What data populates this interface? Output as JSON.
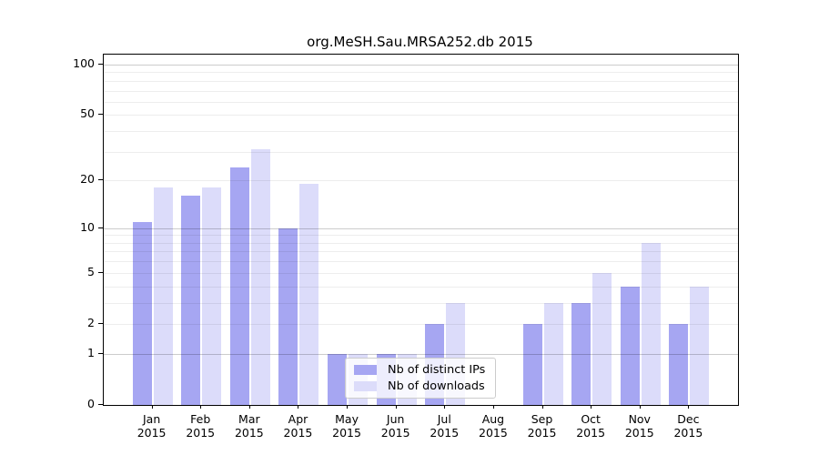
{
  "chart_data": {
    "type": "bar",
    "title": "org.MeSH.Sau.MRSA252.db 2015",
    "categories": [
      {
        "month": "Jan",
        "year": "2015"
      },
      {
        "month": "Feb",
        "year": "2015"
      },
      {
        "month": "Mar",
        "year": "2015"
      },
      {
        "month": "Apr",
        "year": "2015"
      },
      {
        "month": "May",
        "year": "2015"
      },
      {
        "month": "Jun",
        "year": "2015"
      },
      {
        "month": "Jul",
        "year": "2015"
      },
      {
        "month": "Aug",
        "year": "2015"
      },
      {
        "month": "Sep",
        "year": "2015"
      },
      {
        "month": "Oct",
        "year": "2015"
      },
      {
        "month": "Nov",
        "year": "2015"
      },
      {
        "month": "Dec",
        "year": "2015"
      }
    ],
    "series": [
      {
        "name": "Nb of distinct IPs",
        "color": "#a6a6f2",
        "values": [
          11,
          16,
          24,
          10,
          1,
          1,
          2,
          0,
          2,
          3,
          4,
          2
        ]
      },
      {
        "name": "Nb of downloads",
        "color": "#dcdcfa",
        "values": [
          18,
          18,
          31,
          19,
          1,
          1,
          3,
          0,
          3,
          5,
          8,
          4
        ]
      }
    ],
    "yscale": "log10(value+1)",
    "y_tick_labels": [
      100,
      50,
      20,
      10,
      5,
      2,
      1,
      0
    ],
    "y_minor_gridlines": [
      2,
      3,
      4,
      5,
      6,
      7,
      8,
      9,
      20,
      30,
      40,
      50,
      60,
      70,
      80,
      90
    ],
    "y_major_gridlines": [
      1,
      10,
      100
    ],
    "ylim": [
      0,
      115
    ],
    "grid": true,
    "legend_position": "bottom-center",
    "xlabel": "",
    "ylabel": ""
  }
}
